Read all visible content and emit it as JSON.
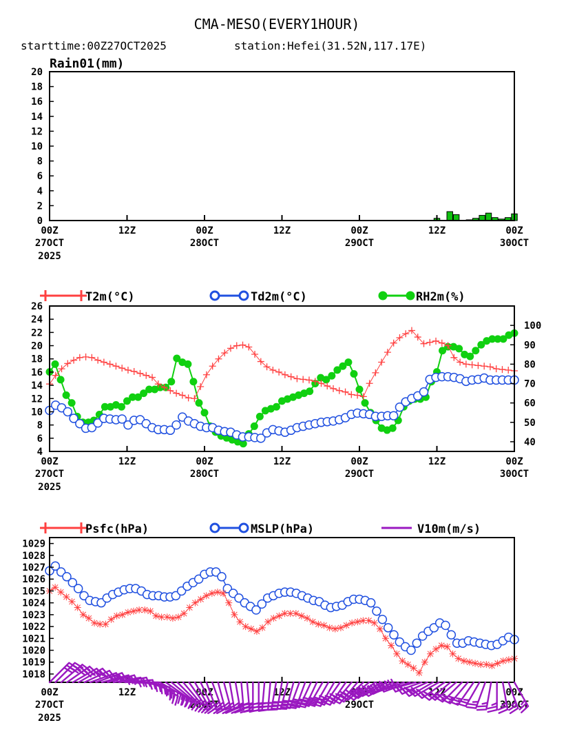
{
  "title": "CMA-MESO(EVERY1HOUR)",
  "subtitle": {
    "start": "starttime:00Z27OCT2025",
    "station": "station:Hefei(31.52N,117.17E)"
  },
  "x_axis": {
    "hours": [
      0,
      12,
      24,
      36,
      48,
      60,
      72
    ],
    "line1": [
      "00Z",
      "12Z",
      "00Z",
      "12Z",
      "00Z",
      "12Z",
      "00Z"
    ],
    "line2": [
      "27OCT",
      "",
      "28OCT",
      "",
      "29OCT",
      "",
      "30OCT"
    ],
    "line3": [
      "2025",
      "",
      "",
      "",
      "",
      "",
      ""
    ]
  },
  "colors": {
    "T2m": "#ff4040",
    "Td2m": "#2050e0",
    "RH2m": "#10d010",
    "rain": "#10c010",
    "Psfc": "#ff4040",
    "MSLP": "#2050e0",
    "wind": "#9a18c0"
  },
  "chart_data": [
    {
      "type": "bar",
      "title": "Rain01(mm)",
      "ylim": [
        0,
        20
      ],
      "yticks": [
        0,
        2,
        4,
        6,
        8,
        10,
        12,
        14,
        16,
        18,
        20
      ],
      "hours": [
        60,
        61,
        62,
        63,
        64,
        65,
        66,
        67,
        68,
        69,
        70,
        71,
        72
      ],
      "values": [
        0.3,
        0,
        1.2,
        0.8,
        0,
        0.1,
        0.3,
        0.7,
        1.0,
        0.4,
        0.2,
        0.4,
        0.9
      ]
    },
    {
      "type": "line",
      "series": [
        {
          "name": "T2m(°C)",
          "axis": "left",
          "values": [
            14.2,
            15.5,
            16.5,
            17.3,
            17.8,
            18.2,
            18.3,
            18.2,
            17.8,
            17.5,
            17.2,
            16.9,
            16.6,
            16.3,
            16.1,
            15.8,
            15.5,
            15.2,
            14.2,
            13.7,
            13.2,
            12.8,
            12.5,
            12.1,
            12.0,
            13.8,
            15.6,
            16.9,
            18.0,
            18.9,
            19.6,
            20.0,
            20.1,
            19.8,
            18.7,
            17.6,
            16.8,
            16.3,
            16.0,
            15.6,
            15.3,
            15.0,
            14.9,
            14.8,
            14.6,
            14.3,
            13.9,
            13.5,
            13.2,
            13.0,
            12.6,
            12.5,
            12.3,
            14.3,
            15.9,
            17.5,
            19.0,
            20.4,
            21.2,
            21.8,
            22.3,
            21.3,
            20.3,
            20.5,
            20.7,
            20.4,
            20.0,
            18.2,
            17.5,
            17.2,
            17.1,
            17.0,
            16.9,
            16.8,
            16.5,
            16.4,
            16.3,
            16.2
          ]
        },
        {
          "name": "Td2m(°C)",
          "axis": "left",
          "values": [
            10.2,
            11.0,
            10.6,
            10.0,
            9.0,
            8.2,
            7.5,
            7.6,
            8.3,
            9.0,
            8.9,
            8.8,
            8.9,
            8.0,
            8.7,
            8.8,
            8.2,
            7.6,
            7.3,
            7.3,
            7.2,
            8.0,
            9.2,
            8.6,
            8.2,
            7.8,
            7.6,
            7.6,
            7.2,
            7.0,
            6.9,
            6.5,
            6.2,
            6.2,
            6.1,
            6.0,
            6.8,
            7.3,
            7.1,
            6.9,
            7.2,
            7.6,
            7.8,
            8.0,
            8.2,
            8.4,
            8.5,
            8.6,
            8.8,
            9.1,
            9.6,
            9.8,
            9.7,
            9.6,
            9.3,
            9.3,
            9.4,
            9.4,
            10.7,
            11.5,
            12.0,
            12.4,
            13.0,
            14.9,
            15.2,
            15.3,
            15.3,
            15.2,
            15.0,
            14.6,
            14.8,
            14.9,
            15.1,
            14.8,
            14.8,
            14.8,
            14.8,
            14.8
          ]
        },
        {
          "name": "RH2m(%)",
          "axis": "right",
          "values": [
            76,
            80,
            72,
            64,
            60,
            53,
            50,
            50,
            51,
            54,
            58,
            58,
            59,
            58,
            61,
            63,
            63,
            65,
            67,
            67,
            68,
            68,
            71,
            83,
            81,
            80,
            71,
            60,
            55,
            48,
            45,
            43,
            42,
            41,
            40,
            39,
            44,
            48,
            53,
            56,
            57,
            58,
            61,
            62,
            63,
            64,
            65,
            66,
            70,
            73,
            72,
            74,
            77,
            79,
            81,
            75,
            67,
            60,
            55,
            51,
            47,
            46,
            47,
            51,
            58,
            61,
            62,
            62,
            63,
            71,
            76,
            87,
            89,
            89,
            88,
            85,
            84,
            87,
            90,
            92,
            93,
            93,
            93,
            95,
            96
          ]
        }
      ],
      "yleft_ticks": [
        4,
        6,
        8,
        10,
        12,
        14,
        16,
        18,
        20,
        22,
        24,
        26
      ],
      "yleft_lim": [
        4,
        26
      ],
      "yright_ticks": [
        40,
        50,
        60,
        70,
        80,
        90,
        100
      ],
      "yright_lim": [
        35,
        110
      ]
    },
    {
      "type": "line",
      "series": [
        {
          "name": "Psfc(hPa)",
          "values": [
            1025.0,
            1025.3,
            1024.9,
            1024.5,
            1024.1,
            1023.6,
            1023.0,
            1022.7,
            1022.3,
            1022.2,
            1022.2,
            1022.6,
            1022.9,
            1023.0,
            1023.2,
            1023.3,
            1023.4,
            1023.4,
            1023.3,
            1022.9,
            1022.8,
            1022.8,
            1022.7,
            1022.8,
            1023.1,
            1023.6,
            1024.0,
            1024.3,
            1024.6,
            1024.8,
            1024.9,
            1024.8,
            1024.0,
            1023.0,
            1022.4,
            1022.0,
            1021.8,
            1021.6,
            1021.9,
            1022.4,
            1022.7,
            1022.9,
            1023.1,
            1023.1,
            1023.1,
            1022.9,
            1022.7,
            1022.4,
            1022.2,
            1022.1,
            1021.9,
            1021.8,
            1021.9,
            1022.1,
            1022.3,
            1022.4,
            1022.5,
            1022.5,
            1022.3,
            1021.8,
            1021.0,
            1020.4,
            1019.7,
            1019.1,
            1018.8,
            1018.5,
            1018.1,
            1019.0,
            1019.7,
            1020.1,
            1020.4,
            1020.3,
            1019.7,
            1019.3,
            1019.1,
            1019.0,
            1018.9,
            1018.8,
            1018.8,
            1018.7,
            1018.9,
            1019.1,
            1019.2,
            1019.3
          ]
        },
        {
          "name": "MSLP(hPa)",
          "values": [
            1026.7,
            1027.1,
            1026.6,
            1026.2,
            1025.7,
            1025.2,
            1024.6,
            1024.2,
            1024.1,
            1024.0,
            1024.4,
            1024.7,
            1024.9,
            1025.1,
            1025.2,
            1025.2,
            1025.0,
            1024.7,
            1024.6,
            1024.6,
            1024.5,
            1024.5,
            1024.6,
            1025.0,
            1025.4,
            1025.7,
            1026.0,
            1026.4,
            1026.6,
            1026.6,
            1026.2,
            1025.2,
            1024.8,
            1024.4,
            1024.0,
            1023.7,
            1023.4,
            1023.9,
            1024.4,
            1024.6,
            1024.8,
            1024.9,
            1024.9,
            1024.8,
            1024.6,
            1024.4,
            1024.2,
            1024.1,
            1023.8,
            1023.6,
            1023.7,
            1023.8,
            1024.1,
            1024.3,
            1024.3,
            1024.2,
            1024.0,
            1023.3,
            1022.6,
            1021.9,
            1021.3,
            1020.7,
            1020.3,
            1020.0,
            1020.6,
            1021.2,
            1021.6,
            1021.9,
            1022.3,
            1022.1,
            1021.3,
            1020.6,
            1020.6,
            1020.8,
            1020.7,
            1020.6,
            1020.5,
            1020.4,
            1020.5,
            1020.8,
            1021.1,
            1020.9
          ]
        },
        {
          "name": "V10m(m/s)",
          "type": "barbs",
          "directions": [
            45,
            45,
            50,
            55,
            60,
            60,
            65,
            70,
            70,
            75,
            75,
            80,
            80,
            85,
            90,
            95,
            100,
            110,
            120,
            120,
            125,
            130,
            135,
            140,
            145,
            150,
            155,
            160,
            160,
            165,
            165,
            170,
            170,
            175,
            175,
            180,
            180,
            185,
            185,
            190,
            190,
            195,
            195,
            200,
            200,
            205,
            205,
            210,
            210,
            210,
            215,
            215,
            220,
            220,
            225,
            230,
            230,
            235,
            240,
            240,
            245,
            250,
            250,
            255,
            250,
            245,
            240,
            240,
            235,
            230,
            230,
            225,
            220,
            215,
            210,
            200,
            190,
            180,
            170,
            160,
            150
          ],
          "speeds": [
            6,
            6,
            6,
            6,
            5,
            5,
            5,
            5,
            5,
            5,
            5,
            5,
            4,
            4,
            4,
            4,
            4,
            5,
            5,
            5,
            5,
            5,
            5,
            5,
            5,
            5,
            5,
            5,
            5,
            5,
            5,
            5,
            5,
            5,
            6,
            6,
            6,
            6,
            6,
            6,
            6,
            6,
            6,
            6,
            6,
            6,
            6,
            6,
            6,
            6,
            6,
            6,
            6,
            6,
            6,
            6,
            6,
            6,
            6,
            6,
            6,
            6,
            6,
            6,
            5,
            5,
            5,
            5,
            5,
            5,
            5,
            5,
            5,
            5,
            5,
            5,
            5,
            5,
            5,
            5,
            5
          ]
        }
      ],
      "ylim": [
        1017.3,
        1029.5
      ],
      "yticks": [
        1018,
        1019,
        1020,
        1021,
        1022,
        1023,
        1024,
        1025,
        1026,
        1027,
        1028,
        1029
      ]
    }
  ]
}
